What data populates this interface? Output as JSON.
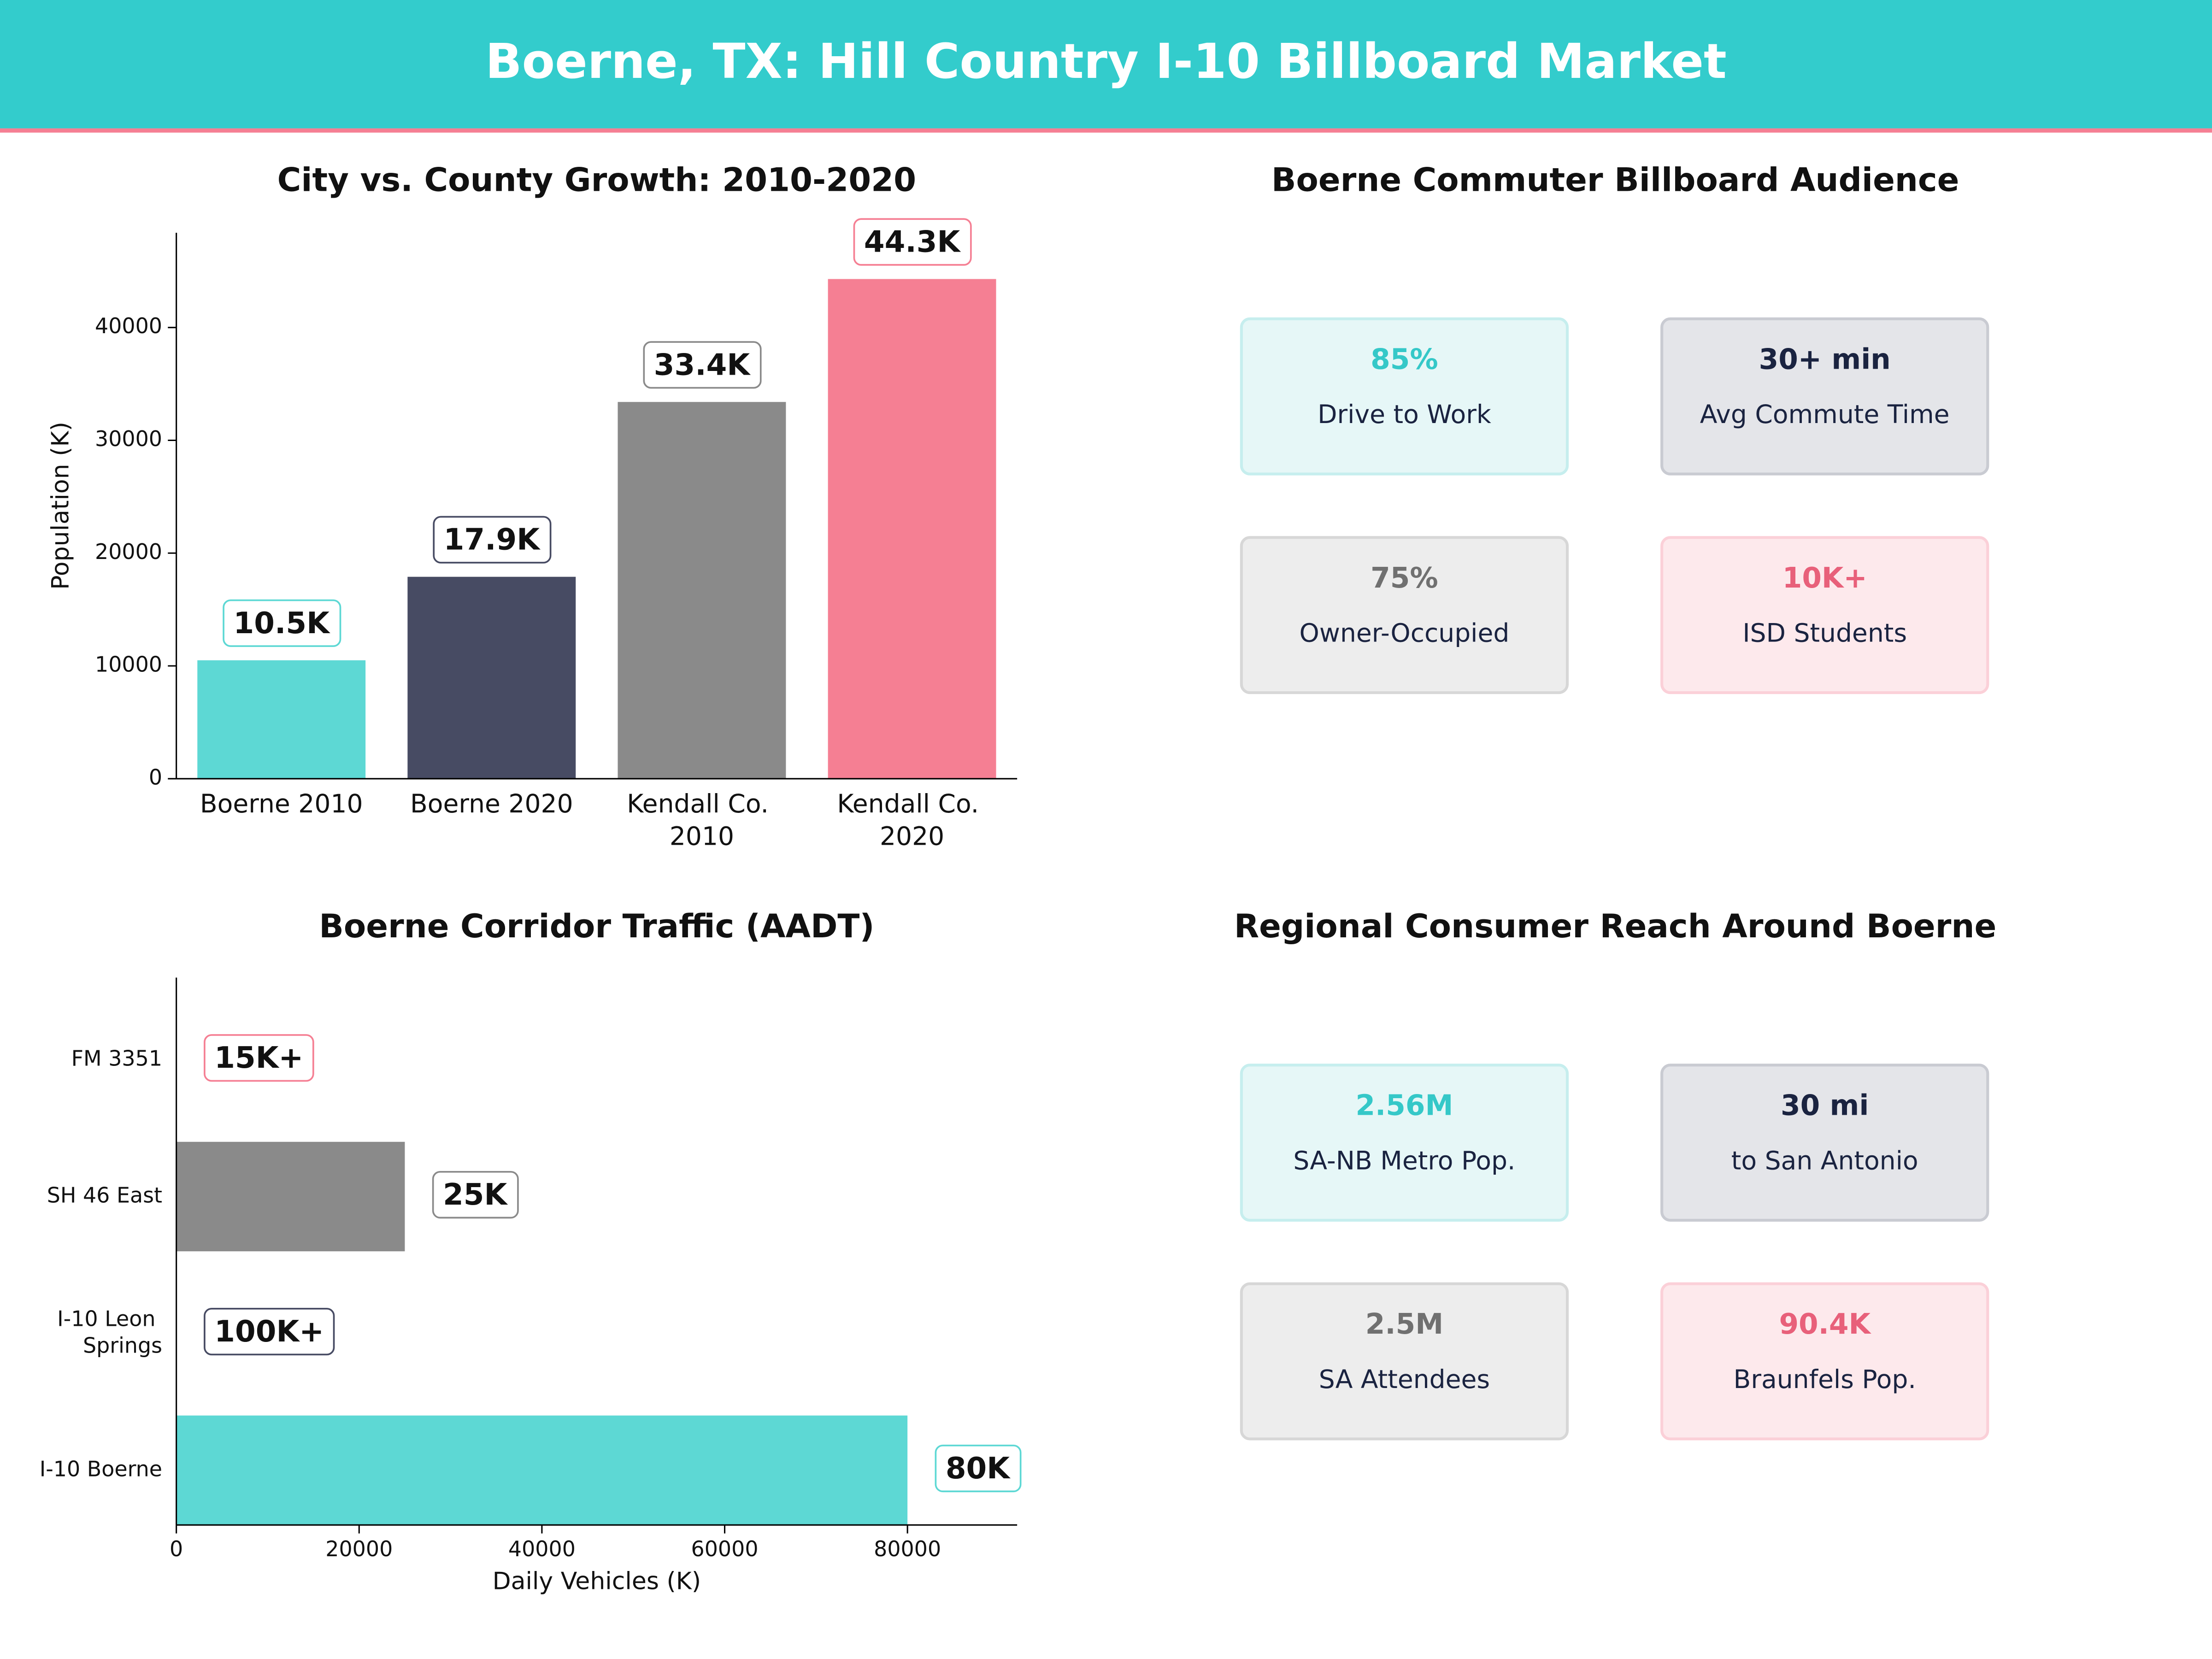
{
  "title": "Boerne, TX: Hill Country I-10 Billboard Market",
  "chart_data": [
    {
      "type": "bar",
      "title": "City vs. County Growth: 2010-2020",
      "ylabel": "Population (K)",
      "categories": [
        "Boerne 2010",
        "Boerne 2020",
        "Kendall Co. 2010",
        "Kendall Co. 2020"
      ],
      "values": [
        10500,
        17900,
        33400,
        44300
      ],
      "value_labels": [
        "10.5K",
        "17.9K",
        "33.4K",
        "44.3K"
      ],
      "colors": [
        "#5dd8d4",
        "#474b63",
        "#8a8a8a",
        "#f57f93"
      ],
      "ylim": [
        0,
        48400
      ],
      "yticks": [
        0,
        10000,
        20000,
        30000,
        40000
      ]
    },
    {
      "type": "barh",
      "title": "Boerne Corridor Traffic (AADT)",
      "xlabel": "Daily Vehicles (K)",
      "categories": [
        "FM 3351",
        "SH 46 East",
        "I-10 Leon Springs",
        "I-10 Boerne"
      ],
      "values": [
        null,
        25000,
        null,
        80000
      ],
      "value_labels": [
        "15K+",
        "25K",
        "100K+",
        "80K"
      ],
      "colors": [
        "#f57f93",
        "#8a8a8a",
        "#474b63",
        "#5dd8d4"
      ],
      "xlim": [
        0,
        92000
      ],
      "xticks": [
        0,
        20000,
        40000,
        60000,
        80000
      ]
    }
  ],
  "cards": [
    {
      "title": "Boerne Commuter Billboard Audience",
      "items": [
        {
          "value": "85%",
          "label": "Drive to Work",
          "color": "#35c8c8"
        },
        {
          "value": "30+ min",
          "label": "Avg Commute Time",
          "color": "#1a2340"
        },
        {
          "value": "75%",
          "label": "Owner-Occupied",
          "color": "#707070"
        },
        {
          "value": "10K+",
          "label": "ISD Students",
          "color": "#e8607a"
        }
      ]
    },
    {
      "title": "Regional Consumer Reach Around Boerne",
      "items": [
        {
          "value": "2.56M",
          "label": "SA-NB Metro Pop.",
          "color": "#35c8c8"
        },
        {
          "value": "30 mi",
          "label": "to San Antonio",
          "color": "#1a2340"
        },
        {
          "value": "2.5M",
          "label": "SA Attendees",
          "color": "#707070"
        },
        {
          "value": "90.4K",
          "label": "Braunfels Pop.",
          "color": "#e8607a"
        }
      ]
    }
  ]
}
